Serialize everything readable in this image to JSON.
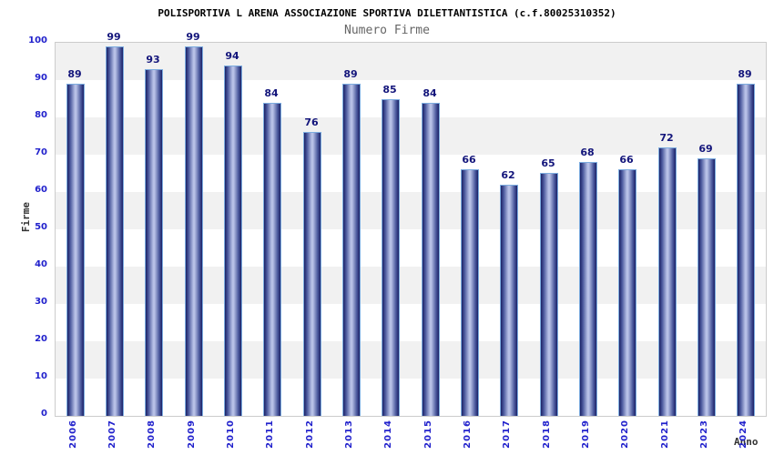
{
  "header": {
    "title": "POLISPORTIVA L ARENA ASSOCIAZIONE SPORTIVA DILETTANTISTICA (c.f.80025310352)",
    "subtitle": "Numero Firme"
  },
  "chart_data": {
    "type": "bar",
    "title": "POLISPORTIVA L ARENA ASSOCIAZIONE SPORTIVA DILETTANTISTICA (c.f.80025310352)",
    "subtitle": "Numero Firme",
    "xlabel": "Anno",
    "ylabel": "Firme",
    "categories": [
      "2006",
      "2007",
      "2008",
      "2009",
      "2010",
      "2011",
      "2012",
      "2013",
      "2014",
      "2015",
      "2016",
      "2017",
      "2018",
      "2019",
      "2020",
      "2021",
      "2023",
      "2024"
    ],
    "values": [
      89,
      99,
      93,
      99,
      94,
      84,
      76,
      89,
      85,
      84,
      66,
      62,
      65,
      68,
      66,
      72,
      69,
      89
    ],
    "ylim": [
      0,
      100
    ],
    "ytick_step": 10,
    "yticks": [
      0,
      10,
      20,
      30,
      40,
      50,
      60,
      70,
      80,
      90,
      100
    ],
    "grid": "alternating horizontal bands",
    "legend": "none",
    "colors": {
      "bar_edge": "#1b2166",
      "bar_mid": "#4c5a9e",
      "bar_center": "#b7c0e6",
      "bar_border": "#7cacdf",
      "value_label": "#13157b",
      "tick_label": "#2222cc",
      "band_gray": "#f1f1f1",
      "band_white": "#ffffff",
      "plot_border": "#cccccc",
      "title_color": "#000000",
      "subtitle_color": "#666666",
      "axis_title_color": "#333333"
    }
  }
}
